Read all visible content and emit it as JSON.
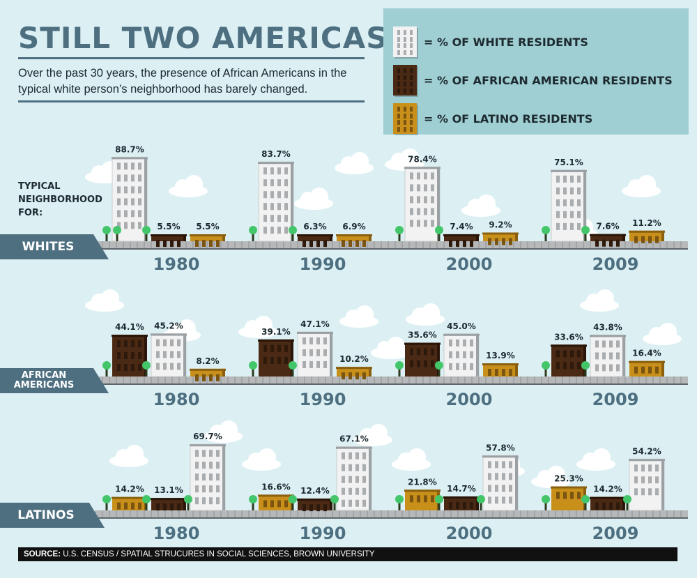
{
  "header": {
    "title": "STILL TWO AMERICAS",
    "subtitle": "Over the past 30 years, the presence of African Americans in the typical white person’s neighborhood has barely changed."
  },
  "legend": {
    "items": [
      {
        "label": "= % OF WHITE RESIDENTS",
        "key": "white"
      },
      {
        "label": "= % OF AFRICAN AMERICAN RESIDENTS",
        "key": "black"
      },
      {
        "label": "= % OF LATINO RESIDENTS",
        "key": "latino"
      }
    ]
  },
  "typical_label": "TYPICAL NEIGHBORHOOD FOR:",
  "colors": {
    "white": "#f2f2f2",
    "black": "#4a2a15",
    "latino": "#c8901a",
    "accent": "#4d6f80",
    "legend_bg": "#9fcfd3",
    "sky": "#dcf0f4"
  },
  "source": {
    "label": "SOURCE:",
    "text": " U.S. CENSUS / SPATIAL STRUCURES IN SOCIAL SCIENCES, BROWN UNIVERSITY"
  },
  "chart_data": [
    {
      "type": "bar",
      "group": "WHITES",
      "categories": [
        "1980",
        "1990",
        "2000",
        "2009"
      ],
      "series": [
        {
          "key": "white",
          "values": [
            88.7,
            83.7,
            78.4,
            75.1
          ],
          "labels": [
            "88.7%",
            "83.7%",
            "78.4%",
            "75.1%"
          ]
        },
        {
          "key": "black",
          "values": [
            5.5,
            6.3,
            7.4,
            7.6
          ],
          "labels": [
            "5.5%",
            "6.3%",
            "7.4%",
            "7.6%"
          ]
        },
        {
          "key": "latino",
          "values": [
            5.5,
            6.9,
            9.2,
            11.2
          ],
          "labels": [
            "5.5%",
            "6.9%",
            "9.2%",
            "11.2%"
          ]
        }
      ]
    },
    {
      "type": "bar",
      "group": "AFRICAN AMERICANS",
      "categories": [
        "1980",
        "1990",
        "2000",
        "2009"
      ],
      "series": [
        {
          "key": "black",
          "values": [
            44.1,
            39.1,
            35.6,
            33.6
          ],
          "labels": [
            "44.1%",
            "39.1%",
            "35.6%",
            "33.6%"
          ]
        },
        {
          "key": "white",
          "values": [
            45.2,
            47.1,
            45.0,
            43.8
          ],
          "labels": [
            "45.2%",
            "47.1%",
            "45.0%",
            "43.8%"
          ]
        },
        {
          "key": "latino",
          "values": [
            8.2,
            10.2,
            13.9,
            16.4
          ],
          "labels": [
            "8.2%",
            "10.2%",
            "13.9%",
            "16.4%"
          ]
        }
      ]
    },
    {
      "type": "bar",
      "group": "LATINOS",
      "categories": [
        "1980",
        "1990",
        "2000",
        "2009"
      ],
      "series": [
        {
          "key": "latino",
          "values": [
            14.2,
            16.6,
            21.8,
            25.3
          ],
          "labels": [
            "14.2%",
            "16.6%",
            "21.8%",
            "25.3%"
          ]
        },
        {
          "key": "black",
          "values": [
            13.1,
            12.4,
            14.7,
            14.2
          ],
          "labels": [
            "13.1%",
            "12.4%",
            "14.7%",
            "14.2%"
          ]
        },
        {
          "key": "white",
          "values": [
            69.7,
            67.1,
            57.8,
            54.2
          ],
          "labels": [
            "69.7%",
            "67.1%",
            "57.8%",
            "54.2%"
          ]
        }
      ]
    }
  ]
}
